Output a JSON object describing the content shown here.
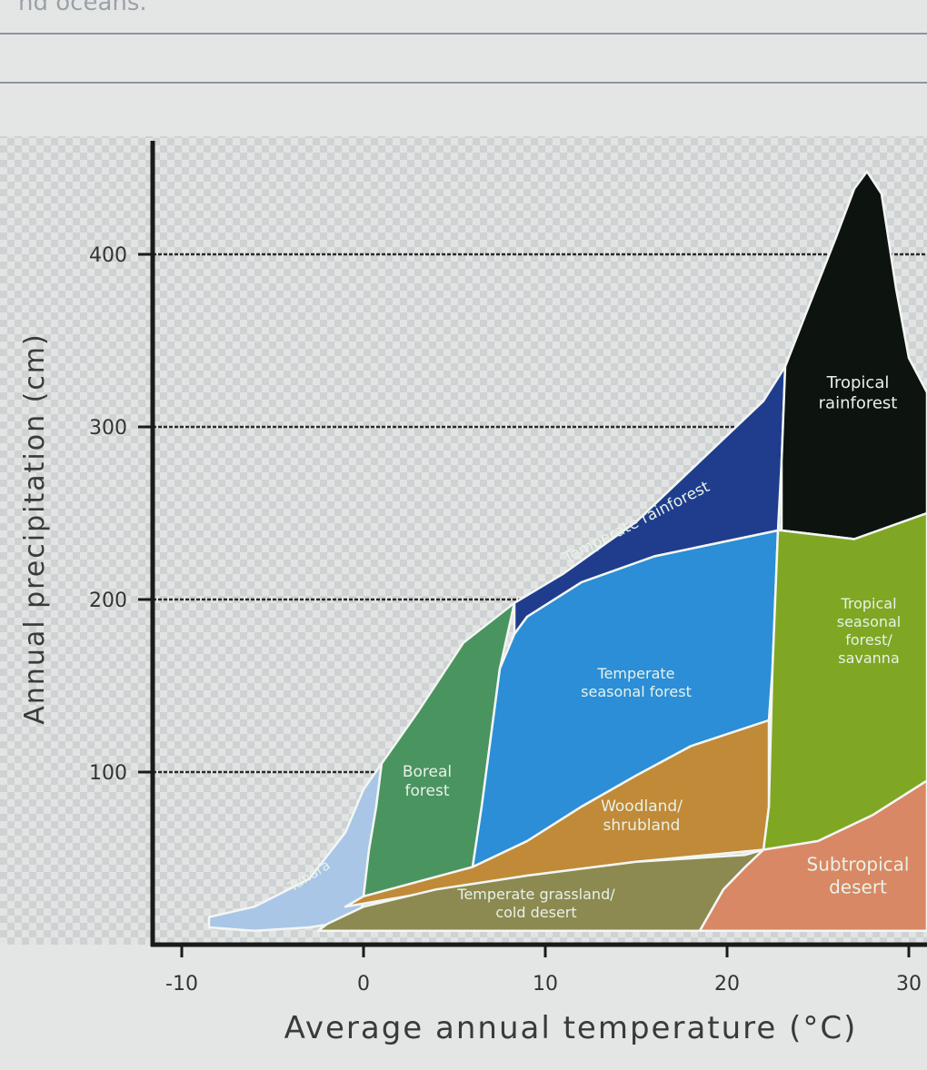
{
  "page": {
    "top_text": "nd oceans."
  },
  "chart_data": {
    "type": "area",
    "title": "",
    "xlabel": "Average annual temperature (°C)",
    "ylabel": "Annual precipitation (cm)",
    "xlim": [
      -13,
      31
    ],
    "ylim": [
      0,
      460
    ],
    "x_ticks": [
      -10,
      0,
      10,
      20,
      30
    ],
    "y_ticks": [
      100,
      200,
      300,
      400
    ],
    "grid": "horizontal dashed at 100, 200, 300, 400",
    "regions": [
      {
        "name": "Tundra",
        "color": "#a9c6e6",
        "text_color": "#dce8f4",
        "label_at": [
          -3,
          40
        ],
        "label_rotate": -32,
        "label_size": 15,
        "polygon": [
          [
            -8.5,
            16
          ],
          [
            -6,
            22
          ],
          [
            -3,
            38
          ],
          [
            -1,
            65
          ],
          [
            0,
            90
          ],
          [
            1,
            105
          ],
          [
            0.7,
            80
          ],
          [
            0.5,
            55
          ],
          [
            0.3,
            30
          ],
          [
            -0.5,
            14
          ],
          [
            -3,
            10
          ],
          [
            -6,
            8
          ],
          [
            -8.5,
            10
          ]
        ]
      },
      {
        "name": "Boreal forest",
        "color": "#4a9460",
        "text_color": "#d8eadc",
        "label_at": [
          3.5,
          95
        ],
        "label_size": 17,
        "polygon": [
          [
            1,
            105
          ],
          [
            3,
            135
          ],
          [
            5.5,
            175
          ],
          [
            8.3,
            198
          ],
          [
            7.5,
            160
          ],
          [
            6.5,
            80
          ],
          [
            6,
            45
          ],
          [
            4,
            38
          ],
          [
            0,
            28
          ],
          [
            0.3,
            55
          ],
          [
            0.7,
            80
          ]
        ]
      },
      {
        "name": "Temperate rainforest",
        "color": "#1f3d8c",
        "text_color": "#d8e2f8",
        "label_at": [
          15,
          245
        ],
        "label_rotate": -27,
        "label_size": 17,
        "polygon": [
          [
            8.3,
            198
          ],
          [
            11,
            215
          ],
          [
            15,
            245
          ],
          [
            19,
            285
          ],
          [
            22,
            315
          ],
          [
            23.2,
            335
          ],
          [
            23,
            280
          ],
          [
            22.8,
            240
          ],
          [
            16,
            225
          ],
          [
            12,
            210
          ],
          [
            9,
            190
          ],
          [
            8.3,
            180
          ]
        ]
      },
      {
        "name": "Temperate seasonal forest",
        "color": "#2b8ed6",
        "text_color": "#e2eef8",
        "label_at": [
          15,
          152
        ],
        "label_size": 16,
        "polygon": [
          [
            8.3,
            180
          ],
          [
            9,
            190
          ],
          [
            12,
            210
          ],
          [
            16,
            225
          ],
          [
            22.8,
            240
          ],
          [
            22.5,
            160
          ],
          [
            22.3,
            130
          ],
          [
            18,
            115
          ],
          [
            15,
            98
          ],
          [
            12,
            80
          ],
          [
            9,
            60
          ],
          [
            6,
            45
          ],
          [
            6.5,
            80
          ],
          [
            7.5,
            160
          ]
        ]
      },
      {
        "name": "Tropical rainforest",
        "color": "#0d130e",
        "text_color": "#d8e0d8",
        "label_at": [
          27.2,
          320
        ],
        "label_size": 18,
        "polygon": [
          [
            23.2,
            335
          ],
          [
            24.5,
            370
          ],
          [
            26,
            410
          ],
          [
            27,
            438
          ],
          [
            27.7,
            448
          ],
          [
            28.5,
            435
          ],
          [
            29.3,
            380
          ],
          [
            30,
            340
          ],
          [
            31,
            320
          ],
          [
            31,
            250
          ],
          [
            27,
            235
          ],
          [
            23,
            240
          ],
          [
            23,
            280
          ]
        ]
      },
      {
        "name": "Tropical seasonal forest/ savanna",
        "color": "#7fa724",
        "text_color": "#e8f2d8",
        "label_at": [
          27.8,
          182
        ],
        "label_size": 16,
        "polygon": [
          [
            22.8,
            240
          ],
          [
            23,
            240
          ],
          [
            27,
            235
          ],
          [
            31,
            250
          ],
          [
            31,
            95
          ],
          [
            28,
            75
          ],
          [
            25,
            60
          ],
          [
            22,
            55
          ],
          [
            22.3,
            80
          ],
          [
            22.5,
            160
          ]
        ]
      },
      {
        "name": "Woodland/ shrubland",
        "color": "#c08a38",
        "text_color": "#f4e8d4",
        "label_at": [
          15.3,
          75
        ],
        "label_size": 17,
        "polygon": [
          [
            22.3,
            130
          ],
          [
            18,
            115
          ],
          [
            15,
            98
          ],
          [
            12,
            80
          ],
          [
            9,
            60
          ],
          [
            6,
            45
          ],
          [
            0,
            28
          ],
          [
            -1,
            22
          ],
          [
            9,
            40
          ],
          [
            15,
            48
          ],
          [
            22,
            55
          ],
          [
            22.3,
            80
          ]
        ]
      },
      {
        "name": "Temperate grassland/ cold desert",
        "color": "#8c8a50",
        "text_color": "#ecead4",
        "label_at": [
          9.5,
          24
        ],
        "label_size": 16,
        "polygon": [
          [
            -2,
            12
          ],
          [
            0,
            22
          ],
          [
            4,
            32
          ],
          [
            9,
            40
          ],
          [
            15,
            48
          ],
          [
            21,
            52
          ],
          [
            22,
            55
          ],
          [
            21,
            45
          ],
          [
            19.8,
            32
          ],
          [
            18.5,
            8
          ],
          [
            10,
            8
          ],
          [
            0,
            8
          ],
          [
            -2.5,
            8
          ]
        ]
      },
      {
        "name": "Subtropical desert",
        "color": "#d88864",
        "text_color": "#f8e8dc",
        "label_at": [
          27.2,
          40
        ],
        "label_size": 20,
        "polygon": [
          [
            18.5,
            8
          ],
          [
            19.8,
            32
          ],
          [
            21,
            45
          ],
          [
            22,
            55
          ],
          [
            25,
            60
          ],
          [
            28,
            75
          ],
          [
            31,
            95
          ],
          [
            31,
            8
          ]
        ]
      }
    ]
  }
}
